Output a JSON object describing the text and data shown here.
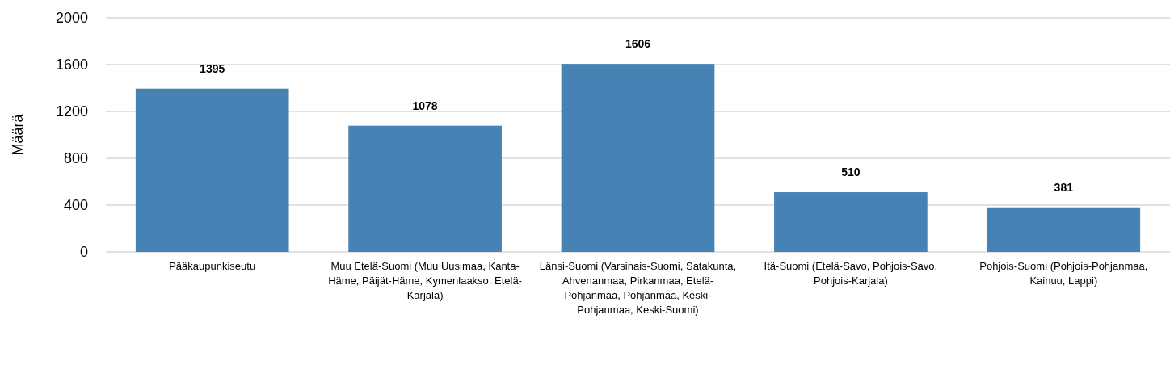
{
  "chart_data": {
    "type": "bar",
    "ylabel": "Määrä",
    "categories": [
      "Pääkaupunkiseutu",
      "Muu Etelä-Suomi (Muu Uusimaa, Kanta-Häme, Päijät-Häme, Kymenlaakso, Etelä-Karjala)",
      "Länsi-Suomi (Varsinais-Suomi, Satakunta, Ahvenanmaa, Pirkanmaa, Etelä-Pohjanmaa, Pohjanmaa, Keski-Pohjanmaa, Keski-Suomi)",
      "Itä-Suomi (Etelä-Savo, Pohjois-Savo, Pohjois-Karjala)",
      "Pohjois-Suomi (Pohjois-Pohjanmaa, Kainuu, Lappi)"
    ],
    "values": [
      1395,
      1078,
      1606,
      510,
      381
    ],
    "color": "#4682b4",
    "ylim": [
      0,
      2000
    ],
    "yticks": [
      0,
      400,
      800,
      1200,
      1600,
      2000
    ],
    "grid": "y",
    "data_labels": true
  }
}
